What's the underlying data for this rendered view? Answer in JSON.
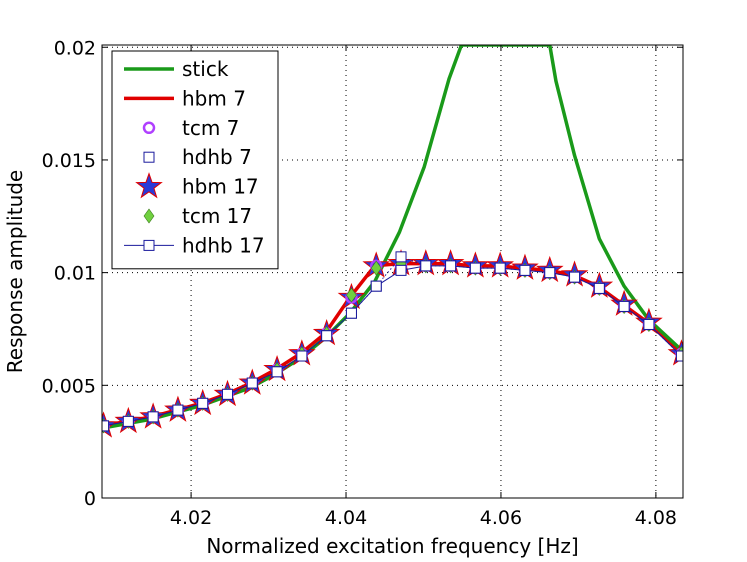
{
  "chart_data": {
    "type": "line",
    "title": "",
    "xlabel": "Normalized excitation frequency [Hz]",
    "ylabel": "Response amplitude",
    "xlim": [
      4.0085,
      4.0835
    ],
    "ylim": [
      0,
      0.0201
    ],
    "xticks": [
      4.02,
      4.04,
      4.06,
      4.08
    ],
    "xtick_labels": [
      "4.02",
      "4.04",
      "4.06",
      "4.08"
    ],
    "yticks": [
      0,
      0.005,
      0.01,
      0.015,
      0.02
    ],
    "ytick_labels": [
      "0",
      "0.005",
      "0.01",
      "0.015",
      "0.02"
    ],
    "grid": true,
    "legend_position": "top-left",
    "colors": {
      "stick": "#1a9a1a",
      "hbm": "#e00000",
      "tcm": "#b040ff",
      "hdhb": "#1a1a9c",
      "star_fill": "#2a3ad8",
      "diamond_fill": "#70d040"
    },
    "series": [
      {
        "name": "stick",
        "style": "green-line",
        "x": [
          4.0085,
          4.0117,
          4.0149,
          4.0181,
          4.0213,
          4.0245,
          4.0277,
          4.0309,
          4.0341,
          4.0373,
          4.0405,
          4.0437,
          4.0469,
          4.0501,
          4.0533,
          4.0549,
          4.0663,
          4.0671,
          4.0695,
          4.0727,
          4.0759,
          4.0791,
          4.0835
        ],
        "values": [
          0.0031,
          0.0033,
          0.0035,
          0.0038,
          0.0041,
          0.0045,
          0.0049,
          0.0055,
          0.0062,
          0.0071,
          0.0082,
          0.0096,
          0.0118,
          0.0147,
          0.0186,
          0.0201,
          0.0201,
          0.0185,
          0.0152,
          0.0115,
          0.0094,
          0.0079,
          0.0065
        ]
      },
      {
        "name": "hbm 7",
        "style": "red-line",
        "x": [
          4.0085,
          4.0117,
          4.0149,
          4.0181,
          4.0213,
          4.0245,
          4.0277,
          4.0309,
          4.0341,
          4.0373,
          4.0405,
          4.0437,
          4.0469,
          4.0501,
          4.0533,
          4.0565,
          4.0597,
          4.0629,
          4.0661,
          4.0693,
          4.0725,
          4.0757,
          4.0789,
          4.0835
        ],
        "values": [
          0.0032,
          0.0034,
          0.0036,
          0.0039,
          0.0042,
          0.0046,
          0.0051,
          0.0057,
          0.0064,
          0.0073,
          0.0089,
          0.0103,
          0.0104,
          0.0104,
          0.0104,
          0.0103,
          0.0103,
          0.0102,
          0.0101,
          0.0099,
          0.0094,
          0.0086,
          0.0078,
          0.0064
        ]
      },
      {
        "name": "tcm 7",
        "style": "purple-circle",
        "x": [
          4.0087,
          4.0119,
          4.0151,
          4.0183,
          4.0215,
          4.0247,
          4.0279,
          4.0311,
          4.0343,
          4.0375,
          4.0407,
          4.0439,
          4.0471,
          4.0503,
          4.0535,
          4.0567,
          4.0599,
          4.0631,
          4.0663,
          4.0695,
          4.0727,
          4.0759,
          4.0791,
          4.0833
        ],
        "values": [
          0.0032,
          0.0034,
          0.0036,
          0.0039,
          0.0042,
          0.0046,
          0.0051,
          0.0057,
          0.0064,
          0.0073,
          0.0089,
          0.0103,
          0.0103,
          0.0103,
          0.0103,
          0.0102,
          0.0102,
          0.0101,
          0.01,
          0.0098,
          0.0093,
          0.0085,
          0.0077,
          0.0064
        ]
      },
      {
        "name": "hdhb 7",
        "style": "blue-square-dotted",
        "x": [
          4.0087,
          4.0119,
          4.0151,
          4.0183,
          4.0215,
          4.0247,
          4.0279,
          4.0311,
          4.0343,
          4.0375,
          4.0407,
          4.0439,
          4.0471,
          4.0503,
          4.0535,
          4.0567,
          4.0599,
          4.0631,
          4.0663,
          4.0695,
          4.0727,
          4.0759,
          4.0791,
          4.0833
        ],
        "values": [
          0.0032,
          0.0034,
          0.0036,
          0.0039,
          0.0042,
          0.0046,
          0.0051,
          0.0056,
          0.0063,
          0.0072,
          0.0082,
          0.0094,
          0.0107,
          0.0103,
          0.0103,
          0.0102,
          0.0102,
          0.0101,
          0.01,
          0.0098,
          0.0093,
          0.0085,
          0.0077,
          0.0063
        ]
      },
      {
        "name": "hbm 17",
        "style": "star",
        "x": [
          4.0087,
          4.0119,
          4.0151,
          4.0183,
          4.0215,
          4.0247,
          4.0279,
          4.0311,
          4.0343,
          4.0375,
          4.0407,
          4.0439,
          4.0471,
          4.0503,
          4.0535,
          4.0567,
          4.0599,
          4.0631,
          4.0663,
          4.0695,
          4.0727,
          4.0759,
          4.0791,
          4.0833
        ],
        "values": [
          0.0032,
          0.0034,
          0.0036,
          0.0039,
          0.0042,
          0.0046,
          0.0051,
          0.0057,
          0.0064,
          0.0073,
          0.0089,
          0.0103,
          0.0104,
          0.0104,
          0.0104,
          0.0103,
          0.0103,
          0.0102,
          0.0101,
          0.0099,
          0.0094,
          0.0086,
          0.0078,
          0.0064
        ]
      },
      {
        "name": "tcm 17",
        "style": "green-diamond",
        "x": [
          4.0087,
          4.0119,
          4.0151,
          4.0183,
          4.0215,
          4.0247,
          4.0279,
          4.0311,
          4.0343,
          4.0375,
          4.0407,
          4.0439,
          4.0471,
          4.0503,
          4.0535,
          4.0567,
          4.0599,
          4.0631,
          4.0663,
          4.0695,
          4.0727,
          4.0759,
          4.0791,
          4.0833
        ],
        "values": [
          0.0032,
          0.0034,
          0.0036,
          0.0039,
          0.0042,
          0.0046,
          0.0051,
          0.0057,
          0.0064,
          0.0073,
          0.009,
          0.0102,
          0.0104,
          0.0103,
          0.0103,
          0.0102,
          0.0102,
          0.0101,
          0.01,
          0.0098,
          0.0093,
          0.0085,
          0.0077,
          0.0064
        ]
      },
      {
        "name": "hdhb 17",
        "style": "blue-square-line",
        "x": [
          4.0087,
          4.0119,
          4.0151,
          4.0183,
          4.0215,
          4.0247,
          4.0279,
          4.0311,
          4.0343,
          4.0375,
          4.0407,
          4.0439,
          4.0471,
          4.0503,
          4.0535,
          4.0567,
          4.0599,
          4.0631,
          4.0663,
          4.0695,
          4.0727,
          4.0759,
          4.0791,
          4.0833
        ],
        "values": [
          0.0032,
          0.0034,
          0.0036,
          0.0039,
          0.0042,
          0.0046,
          0.0051,
          0.0056,
          0.0063,
          0.0072,
          0.0082,
          0.0094,
          0.0101,
          0.0103,
          0.0103,
          0.0102,
          0.0102,
          0.0101,
          0.01,
          0.0098,
          0.0093,
          0.0085,
          0.0077,
          0.0063
        ]
      }
    ]
  }
}
